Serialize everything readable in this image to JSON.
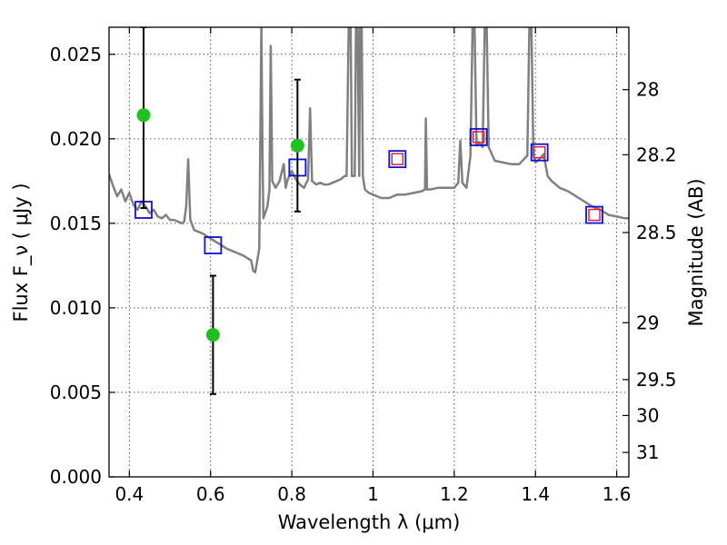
{
  "chart_data": {
    "type": "scatter",
    "xlabel": "Wavelength  λ (μm)",
    "ylabel": "Flux  F_ν  ( μJy )",
    "ylabel_right": "Magnitude (AB)",
    "xlim": [
      0.35,
      1.63
    ],
    "ylim": [
      0.0,
      0.0266
    ],
    "grid": true,
    "x_ticks": [
      0.4,
      0.6,
      0.8,
      1.0,
      1.2,
      1.4,
      1.6
    ],
    "x_tick_labels": [
      "0.4",
      "0.6",
      "0.8",
      "1",
      "1.2",
      "1.4",
      "1.6"
    ],
    "y_ticks": [
      0.0,
      0.005,
      0.01,
      0.015,
      0.02,
      0.025
    ],
    "y_tick_labels": [
      "0.000",
      "0.005",
      "0.010",
      "0.015",
      "0.020",
      "0.025"
    ],
    "right_ticks": [
      {
        "mag": 28,
        "label": "28"
      },
      {
        "mag": 28.2,
        "label": "28.2"
      },
      {
        "mag": 28.5,
        "label": "28.5"
      },
      {
        "mag": 29,
        "label": "29"
      },
      {
        "mag": 29.5,
        "label": "29.5"
      },
      {
        "mag": 30,
        "label": "30"
      },
      {
        "mag": 31,
        "label": "31"
      }
    ],
    "colors": {
      "sed": "#808080",
      "observed": "#1fc01f",
      "model_box": "#1010d0",
      "model_box_inner": "#e0203a",
      "errorbar": "#000000",
      "grid": "#555555"
    },
    "observed": [
      {
        "x": 0.435,
        "y": 0.0214,
        "ylo": 0.0159,
        "yhi": 0.0266
      },
      {
        "x": 0.606,
        "y": 0.0084,
        "ylo": 0.0049,
        "yhi": 0.0119
      },
      {
        "x": 0.814,
        "y": 0.0196,
        "ylo": 0.0157,
        "yhi": 0.0235
      }
    ],
    "model_points": [
      {
        "x": 0.435,
        "y": 0.0158,
        "inner": false
      },
      {
        "x": 0.606,
        "y": 0.0137,
        "inner": false
      },
      {
        "x": 0.814,
        "y": 0.0183,
        "inner": false
      },
      {
        "x": 1.06,
        "y": 0.0188,
        "inner": true
      },
      {
        "x": 1.26,
        "y": 0.0201,
        "inner": true
      },
      {
        "x": 1.41,
        "y": 0.0192,
        "inner": true
      },
      {
        "x": 1.545,
        "y": 0.0155,
        "inner": true
      }
    ],
    "sed_spectrum": [
      [
        0.35,
        0.0179
      ],
      [
        0.36,
        0.0172
      ],
      [
        0.37,
        0.0166
      ],
      [
        0.38,
        0.017
      ],
      [
        0.39,
        0.0163
      ],
      [
        0.4,
        0.0168
      ],
      [
        0.41,
        0.0161
      ],
      [
        0.42,
        0.0158
      ],
      [
        0.43,
        0.0163
      ],
      [
        0.44,
        0.016
      ],
      [
        0.45,
        0.0156
      ],
      [
        0.46,
        0.0158
      ],
      [
        0.47,
        0.0154
      ],
      [
        0.48,
        0.0153
      ],
      [
        0.49,
        0.0155
      ],
      [
        0.5,
        0.0152
      ],
      [
        0.51,
        0.0152
      ],
      [
        0.52,
        0.0151
      ],
      [
        0.53,
        0.015
      ],
      [
        0.535,
        0.0151
      ],
      [
        0.54,
        0.016
      ],
      [
        0.545,
        0.0188
      ],
      [
        0.55,
        0.0152
      ],
      [
        0.56,
        0.0146
      ],
      [
        0.58,
        0.0144
      ],
      [
        0.6,
        0.0141
      ],
      [
        0.62,
        0.0138
      ],
      [
        0.64,
        0.0135
      ],
      [
        0.66,
        0.0133
      ],
      [
        0.68,
        0.0131
      ],
      [
        0.7,
        0.0128
      ],
      [
        0.705,
        0.0122
      ],
      [
        0.71,
        0.0121
      ],
      [
        0.72,
        0.0135
      ],
      [
        0.725,
        0.0266
      ],
      [
        0.728,
        0.019
      ],
      [
        0.73,
        0.0153
      ],
      [
        0.74,
        0.016
      ],
      [
        0.745,
        0.017
      ],
      [
        0.748,
        0.0255
      ],
      [
        0.752,
        0.0175
      ],
      [
        0.76,
        0.0171
      ],
      [
        0.77,
        0.0175
      ],
      [
        0.78,
        0.0185
      ],
      [
        0.785,
        0.0171
      ],
      [
        0.79,
        0.0176
      ],
      [
        0.8,
        0.0181
      ],
      [
        0.81,
        0.0176
      ],
      [
        0.82,
        0.0173
      ],
      [
        0.83,
        0.0171
      ],
      [
        0.84,
        0.0176
      ],
      [
        0.845,
        0.0218
      ],
      [
        0.85,
        0.0175
      ],
      [
        0.86,
        0.0173
      ],
      [
        0.87,
        0.0174
      ],
      [
        0.88,
        0.0173
      ],
      [
        0.89,
        0.0173
      ],
      [
        0.9,
        0.0174
      ],
      [
        0.91,
        0.0175
      ],
      [
        0.92,
        0.0176
      ],
      [
        0.93,
        0.0178
      ],
      [
        0.935,
        0.0178
      ],
      [
        0.94,
        0.0266
      ],
      [
        0.945,
        0.0266
      ],
      [
        0.948,
        0.0178
      ],
      [
        0.955,
        0.0178
      ],
      [
        0.958,
        0.0266
      ],
      [
        0.962,
        0.0266
      ],
      [
        0.966,
        0.0178
      ],
      [
        0.968,
        0.0266
      ],
      [
        0.972,
        0.0266
      ],
      [
        0.975,
        0.0178
      ],
      [
        0.98,
        0.017
      ],
      [
        0.99,
        0.0168
      ],
      [
        1.0,
        0.0167
      ],
      [
        1.02,
        0.0165
      ],
      [
        1.04,
        0.0165
      ],
      [
        1.06,
        0.0167
      ],
      [
        1.08,
        0.0167
      ],
      [
        1.1,
        0.0168
      ],
      [
        1.12,
        0.0169
      ],
      [
        1.128,
        0.017
      ],
      [
        1.13,
        0.0212
      ],
      [
        1.133,
        0.017
      ],
      [
        1.14,
        0.017
      ],
      [
        1.16,
        0.0171
      ],
      [
        1.18,
        0.0171
      ],
      [
        1.2,
        0.0171
      ],
      [
        1.21,
        0.0174
      ],
      [
        1.215,
        0.0199
      ],
      [
        1.22,
        0.0174
      ],
      [
        1.23,
        0.0171
      ],
      [
        1.24,
        0.019
      ],
      [
        1.245,
        0.0266
      ],
      [
        1.25,
        0.0266
      ],
      [
        1.255,
        0.0196
      ],
      [
        1.26,
        0.0198
      ],
      [
        1.27,
        0.0195
      ],
      [
        1.275,
        0.0266
      ],
      [
        1.28,
        0.0266
      ],
      [
        1.285,
        0.0195
      ],
      [
        1.3,
        0.0187
      ],
      [
        1.32,
        0.0186
      ],
      [
        1.34,
        0.0185
      ],
      [
        1.36,
        0.0185
      ],
      [
        1.38,
        0.019
      ],
      [
        1.385,
        0.0266
      ],
      [
        1.39,
        0.0266
      ],
      [
        1.395,
        0.019
      ],
      [
        1.4,
        0.0186
      ],
      [
        1.41,
        0.0188
      ],
      [
        1.42,
        0.0191
      ],
      [
        1.43,
        0.0178
      ],
      [
        1.44,
        0.0175
      ],
      [
        1.46,
        0.0171
      ],
      [
        1.48,
        0.0169
      ],
      [
        1.5,
        0.0166
      ],
      [
        1.52,
        0.0163
      ],
      [
        1.54,
        0.016
      ],
      [
        1.56,
        0.0158
      ],
      [
        1.58,
        0.0155
      ],
      [
        1.6,
        0.0154
      ],
      [
        1.62,
        0.0153
      ],
      [
        1.63,
        0.0153
      ]
    ]
  }
}
